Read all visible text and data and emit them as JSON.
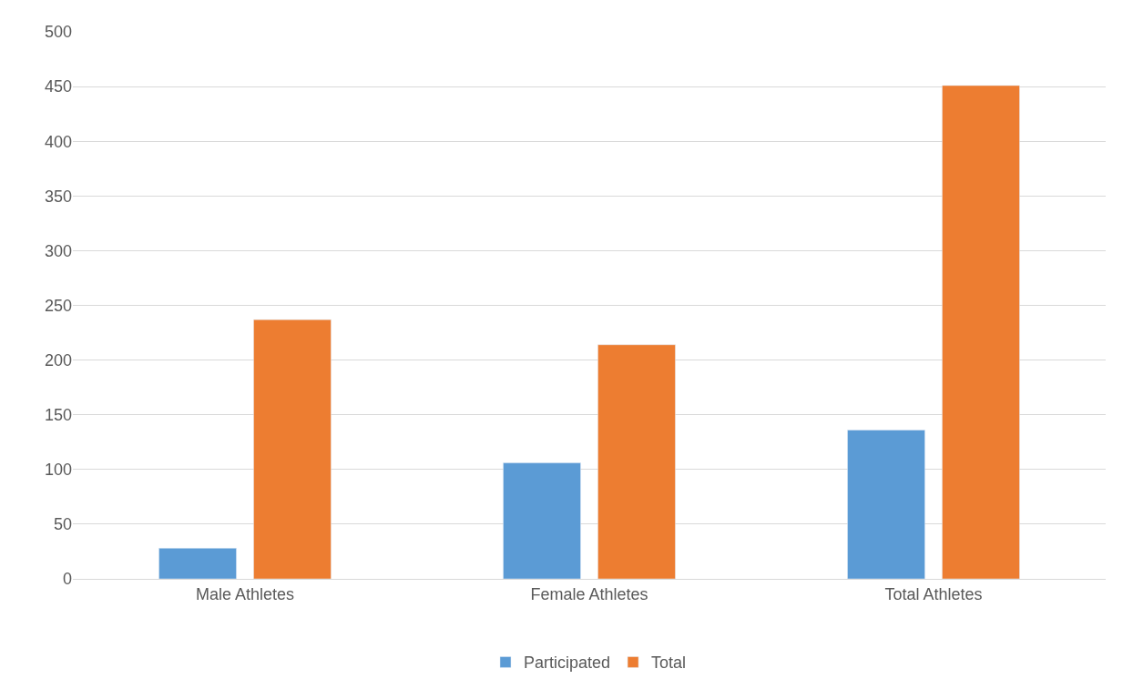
{
  "chart_data": {
    "type": "bar",
    "categories": [
      "Male Athletes",
      "Female Athletes",
      "Total Athletes"
    ],
    "series": [
      {
        "name": "Participated",
        "color": "#5b9bd5",
        "values": [
          28,
          106,
          136
        ]
      },
      {
        "name": "Total",
        "color": "#ed7d31",
        "values": [
          237,
          214,
          451
        ]
      }
    ],
    "ylim": [
      0,
      500
    ],
    "yticks": [
      0,
      50,
      100,
      150,
      200,
      250,
      300,
      350,
      400,
      450,
      500
    ],
    "grid": "y",
    "legend": "bottom"
  }
}
